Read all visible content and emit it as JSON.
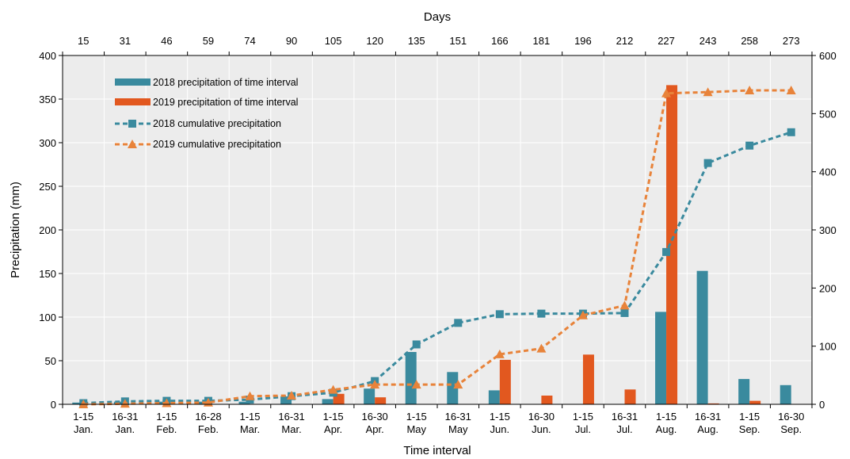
{
  "chart_data": {
    "type": "bar",
    "title": "",
    "xlabel": "Time interval",
    "ylabel": "Precipitation (mm)",
    "top_axis_label": "Days",
    "y2label": "",
    "ylim": [
      0,
      400
    ],
    "y2lim": [
      0,
      600
    ],
    "yticks": [
      "0",
      "50",
      "100",
      "150",
      "200",
      "250",
      "300",
      "350",
      "400"
    ],
    "y2ticks": [
      "0",
      "100",
      "200",
      "300",
      "400",
      "500",
      "600"
    ],
    "grid": true,
    "legend_position": "top-left",
    "categories": [
      [
        "1-15",
        "Jan."
      ],
      [
        "16-31",
        "Jan."
      ],
      [
        "1-15",
        "Feb."
      ],
      [
        "16-28",
        "Feb."
      ],
      [
        "1-15",
        "Mar."
      ],
      [
        "16-31",
        "Mar."
      ],
      [
        "1-15",
        "Apr."
      ],
      [
        "16-30",
        "Apr."
      ],
      [
        "1-15",
        "May"
      ],
      [
        "16-31",
        "May"
      ],
      [
        "1-15",
        "Jun."
      ],
      [
        "16-30",
        "Jun."
      ],
      [
        "1-15",
        "Jul."
      ],
      [
        "16-31",
        "Jul."
      ],
      [
        "1-15",
        "Aug."
      ],
      [
        "16-31",
        "Aug."
      ],
      [
        "1-15",
        "Sep."
      ],
      [
        "16-30",
        "Sep."
      ]
    ],
    "days": [
      "15",
      "31",
      "46",
      "59",
      "74",
      "90",
      "105",
      "120",
      "135",
      "151",
      "166",
      "181",
      "196",
      "212",
      "227",
      "243",
      "258",
      "273"
    ],
    "series": [
      {
        "name": "2018 precipitation of time interval",
        "kind": "bar",
        "axis": "left",
        "color": "#3A8A9E",
        "values": [
          2,
          3,
          3,
          3,
          3,
          9,
          6,
          18,
          60,
          37,
          16,
          0,
          0,
          0,
          106,
          153,
          29,
          22
        ]
      },
      {
        "name": "2019 precipitation of time interval",
        "kind": "bar",
        "axis": "left",
        "color": "#E2581F",
        "values": [
          0,
          0,
          0,
          0,
          0,
          0,
          12,
          8,
          0,
          0,
          51,
          10,
          57,
          17,
          366,
          1,
          4,
          0
        ]
      },
      {
        "name": "2018 cumulative precipitation",
        "kind": "line",
        "marker": "square",
        "axis": "right",
        "color": "#3A8A9E",
        "values": [
          2,
          5,
          6,
          6,
          8,
          14,
          20,
          40,
          103,
          140,
          155,
          156,
          156,
          157,
          262,
          415,
          445,
          468
        ]
      },
      {
        "name": "2019 cumulative precipitation",
        "kind": "line",
        "marker": "triangle",
        "axis": "right",
        "color": "#E8833A",
        "values": [
          0,
          1,
          2,
          3,
          14,
          15,
          25,
          34,
          34,
          34,
          86,
          96,
          153,
          170,
          535,
          537,
          540,
          540
        ]
      }
    ]
  }
}
